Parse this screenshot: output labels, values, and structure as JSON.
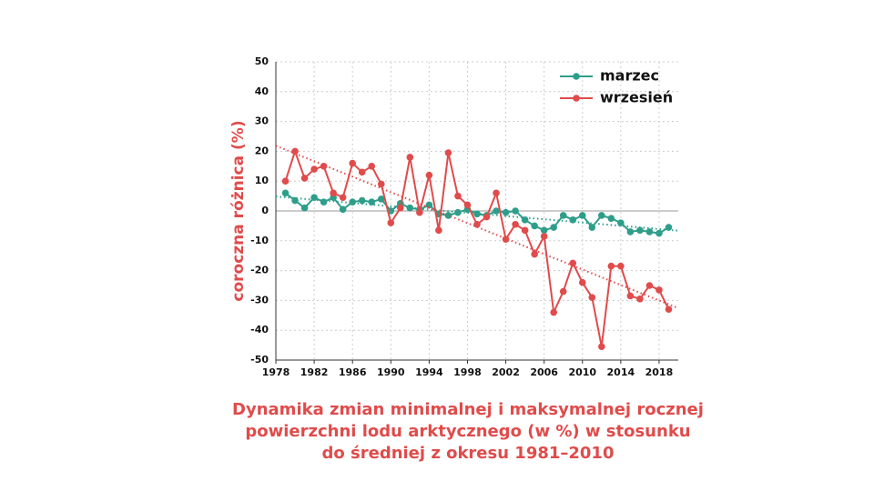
{
  "chart_data": {
    "type": "line",
    "title": [
      "Dynamika zmian minimalnej i maksymalnej rocznej",
      "powierzchni lodu arktycznego (w %) w stosunku",
      "do średniej z okresu 1981–2010"
    ],
    "y_label": "coroczna różnica (%)",
    "x": [
      1979,
      1980,
      1981,
      1982,
      1983,
      1984,
      1985,
      1986,
      1987,
      1988,
      1989,
      1990,
      1991,
      1992,
      1993,
      1994,
      1995,
      1996,
      1997,
      1998,
      1999,
      2000,
      2001,
      2002,
      2003,
      2004,
      2005,
      2006,
      2007,
      2008,
      2009,
      2010,
      2011,
      2012,
      2013,
      2014,
      2015,
      2016,
      2017,
      2018,
      2019
    ],
    "series": [
      {
        "name": "marzec",
        "color": "#2e9e8a",
        "values": [
          6,
          3.5,
          1,
          4.5,
          3,
          4.5,
          0.5,
          3,
          3.5,
          3,
          4,
          0,
          2.5,
          1,
          0.5,
          2,
          -1,
          -1.5,
          -0.5,
          0.5,
          -1,
          -1.5,
          0,
          -0.5,
          0,
          -3,
          -5,
          -6.5,
          -5.5,
          -1.5,
          -3,
          -1.5,
          -5.5,
          -1.5,
          -2.5,
          -4,
          -7,
          -6.5,
          -7,
          -7.5,
          -5.5
        ]
      },
      {
        "name": "wrzesień",
        "color": "#e04b4b",
        "values": [
          10,
          20,
          11,
          14,
          15,
          6,
          4.5,
          16,
          13,
          15,
          9,
          -4,
          1,
          18,
          -0.5,
          12,
          -6.5,
          19.5,
          5,
          2,
          -4.5,
          -2,
          6,
          -9.5,
          -4.5,
          -6.5,
          -14.5,
          -8.5,
          -34,
          -27,
          -17.5,
          -24,
          -29,
          -45.5,
          -18.5,
          -18.5,
          -28.5,
          -29.5,
          -25,
          -26.5,
          -33
        ]
      }
    ],
    "xlim": [
      1978,
      2020
    ],
    "xticks": [
      1978,
      1982,
      1986,
      1990,
      1994,
      1998,
      2002,
      2006,
      2010,
      2014,
      2018
    ],
    "ylim": [
      -50,
      50
    ],
    "yticks": [
      -50,
      -40,
      -30,
      -20,
      -10,
      0,
      10,
      20,
      30,
      40,
      50
    ],
    "grid": true,
    "trendline": true,
    "legend": "top-right"
  }
}
